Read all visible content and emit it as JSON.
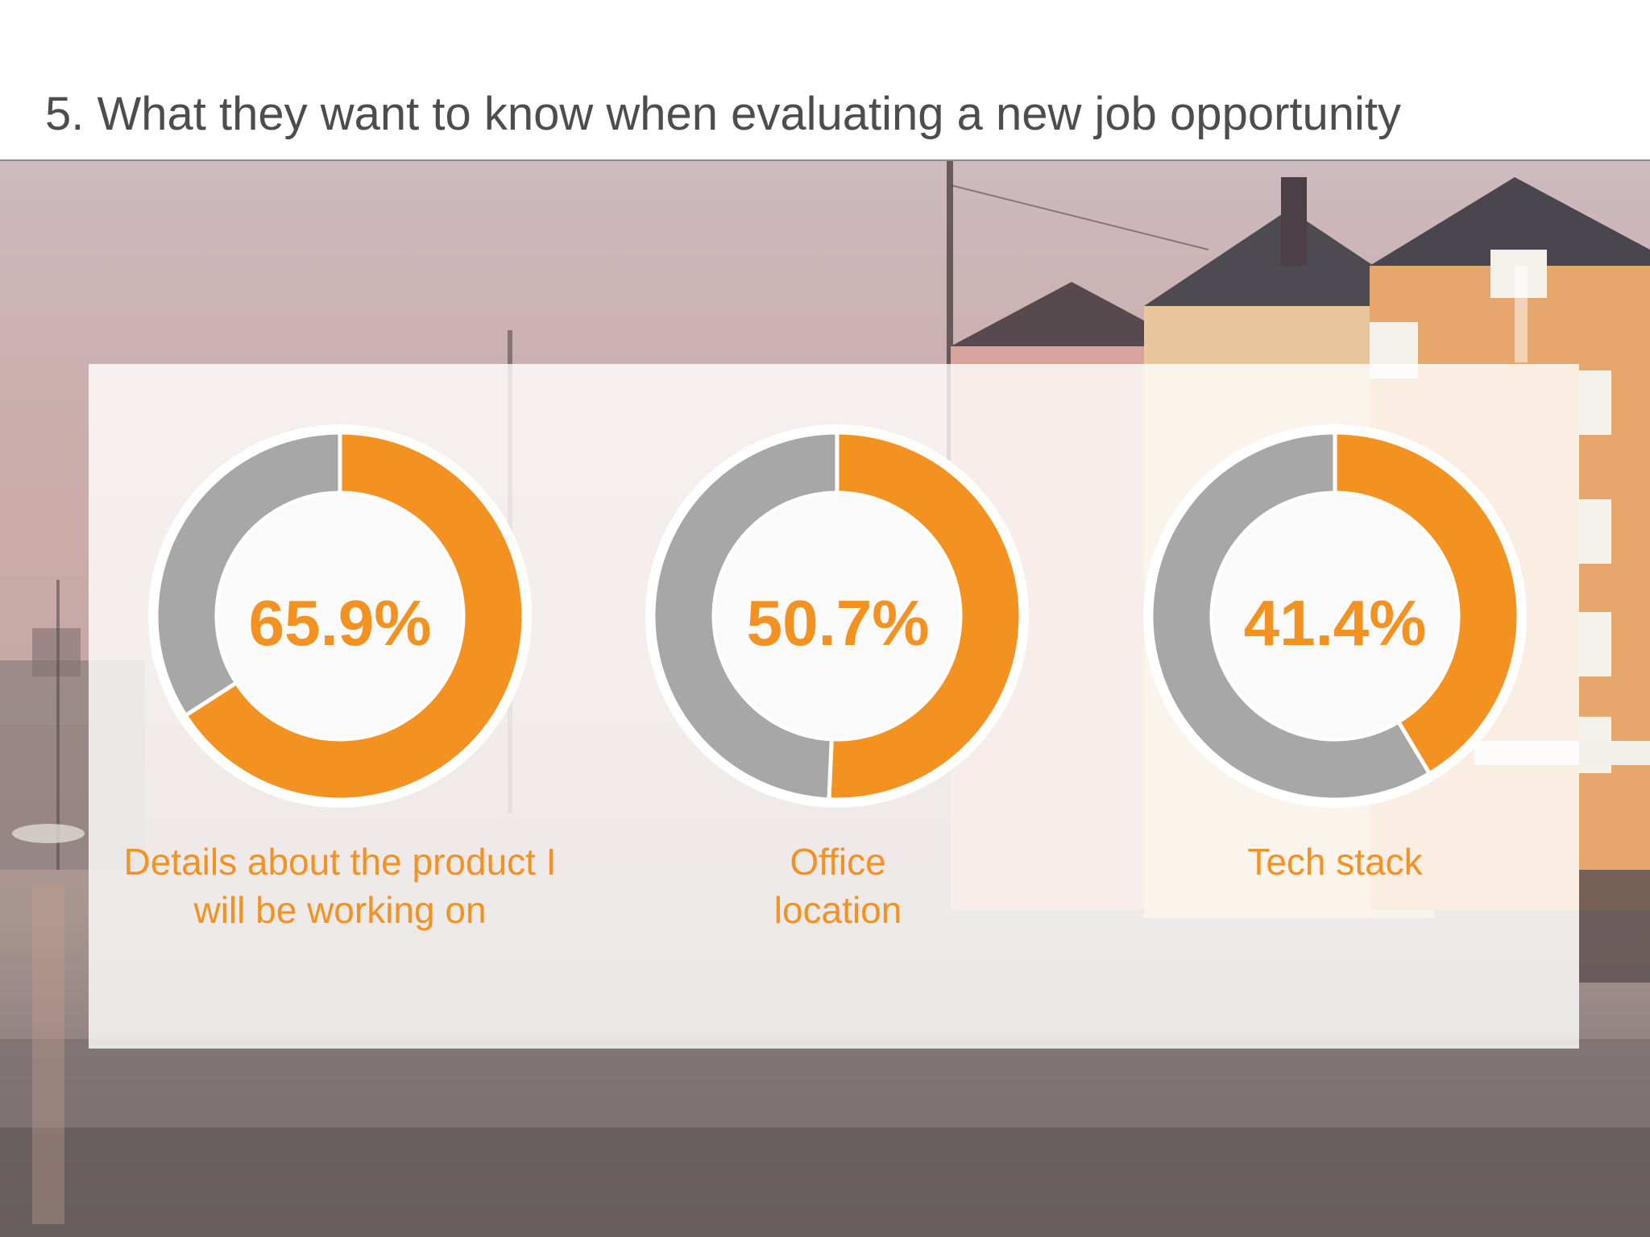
{
  "slide": {
    "title": "5. What they want to know when evaluating a new job opportunity"
  },
  "colors": {
    "accent": "#f39121",
    "remainder": "#a6a7a6",
    "title_text": "#4d4d4f",
    "panel": "#ffffff"
  },
  "chart_data": {
    "type": "pie",
    "variant": "donut",
    "items": [
      {
        "label": "Details about the product I will be working on",
        "value": 65.9,
        "display": "65.9%"
      },
      {
        "label": "Office location",
        "value": 50.7,
        "display": "50.7%"
      },
      {
        "label": "Tech stack",
        "value": 41.4,
        "display": "41.4%"
      }
    ]
  }
}
